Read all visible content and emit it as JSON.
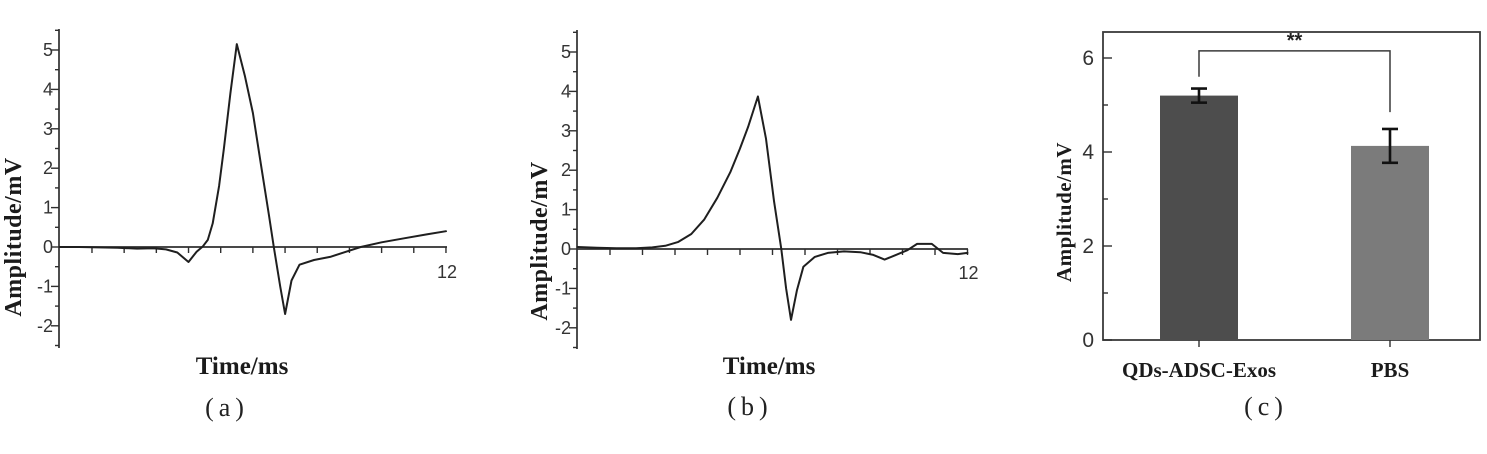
{
  "figure": {
    "background": "#ffffff",
    "line_color": "#1f1f1f",
    "axis_color": "#2f2f2f"
  },
  "chart_data": [
    {
      "panel": "a",
      "type": "line",
      "xlabel": "Time/ms",
      "ylabel": "Amplitude/mV",
      "caption": "(a)",
      "xlim": [
        0,
        12
      ],
      "ylim": [
        -2.55,
        5.55
      ],
      "x_ticks": [
        1,
        2,
        3,
        4,
        5,
        6,
        7,
        8,
        9,
        10,
        11,
        12
      ],
      "x_axis_end_label": "12",
      "y_ticks": [
        -2,
        -1,
        0,
        1,
        2,
        3,
        4,
        5
      ],
      "grid": "off",
      "points": [
        [
          0,
          0
        ],
        [
          0.6,
          0
        ],
        [
          1.2,
          -0.01
        ],
        [
          1.8,
          -0.02
        ],
        [
          2.4,
          -0.04
        ],
        [
          2.9,
          -0.03
        ],
        [
          3.3,
          -0.06
        ],
        [
          3.65,
          -0.14
        ],
        [
          4.0,
          -0.38
        ],
        [
          4.25,
          -0.12
        ],
        [
          4.45,
          0.02
        ],
        [
          4.6,
          0.18
        ],
        [
          4.75,
          0.6
        ],
        [
          4.95,
          1.55
        ],
        [
          5.1,
          2.5
        ],
        [
          5.3,
          3.9
        ],
        [
          5.5,
          5.15
        ],
        [
          5.75,
          4.35
        ],
        [
          6.0,
          3.4
        ],
        [
          6.25,
          2.1
        ],
        [
          6.5,
          0.8
        ],
        [
          6.65,
          0
        ],
        [
          6.85,
          -1.0
        ],
        [
          7.0,
          -1.7
        ],
        [
          7.2,
          -0.85
        ],
        [
          7.45,
          -0.45
        ],
        [
          7.9,
          -0.33
        ],
        [
          8.4,
          -0.25
        ],
        [
          8.9,
          -0.12
        ],
        [
          9.35,
          0
        ],
        [
          10.0,
          0.12
        ],
        [
          10.7,
          0.22
        ],
        [
          11.4,
          0.32
        ],
        [
          12.0,
          0.4
        ]
      ]
    },
    {
      "panel": "b",
      "type": "line",
      "xlabel": "Time/ms",
      "ylabel": "Amplitude/mV",
      "caption": "(b)",
      "xlim": [
        0,
        12
      ],
      "ylim": [
        -2.55,
        5.55
      ],
      "x_ticks": [
        1,
        2,
        3,
        4,
        5,
        6,
        7,
        8,
        9,
        10,
        11,
        12
      ],
      "x_axis_end_label": "12",
      "y_ticks": [
        -2,
        -1,
        0,
        1,
        2,
        3,
        4,
        5
      ],
      "grid": "off",
      "points": [
        [
          0,
          0.05
        ],
        [
          0.6,
          0.03
        ],
        [
          1.2,
          0.02
        ],
        [
          1.8,
          0.02
        ],
        [
          2.3,
          0.04
        ],
        [
          2.7,
          0.08
        ],
        [
          3.1,
          0.18
        ],
        [
          3.5,
          0.38
        ],
        [
          3.9,
          0.75
        ],
        [
          4.3,
          1.3
        ],
        [
          4.7,
          1.95
        ],
        [
          5.0,
          2.55
        ],
        [
          5.25,
          3.1
        ],
        [
          5.55,
          3.87
        ],
        [
          5.8,
          2.8
        ],
        [
          6.05,
          1.2
        ],
        [
          6.27,
          0
        ],
        [
          6.42,
          -1.0
        ],
        [
          6.57,
          -1.8
        ],
        [
          6.75,
          -1.05
        ],
        [
          6.95,
          -0.45
        ],
        [
          7.3,
          -0.2
        ],
        [
          7.7,
          -0.1
        ],
        [
          8.2,
          -0.06
        ],
        [
          8.7,
          -0.08
        ],
        [
          9.1,
          -0.15
        ],
        [
          9.45,
          -0.27
        ],
        [
          9.8,
          -0.15
        ],
        [
          10.15,
          -0.03
        ],
        [
          10.45,
          0.13
        ],
        [
          10.9,
          0.13
        ],
        [
          11.25,
          -0.1
        ],
        [
          11.7,
          -0.13
        ],
        [
          12,
          -0.1
        ]
      ]
    },
    {
      "panel": "c",
      "type": "bar",
      "ylabel": "Amplitude/mV",
      "caption": "(c)",
      "categories": [
        "QDs-ADSC-Exos",
        "PBS"
      ],
      "values": [
        5.2,
        4.13
      ],
      "errors": [
        0.15,
        0.36
      ],
      "bar_colors": [
        "#4d4d4d",
        "#7b7b7b"
      ],
      "y_ticks": [
        0,
        2,
        4,
        6
      ],
      "y_minor_ticks": [
        1,
        3,
        5
      ],
      "ylim": [
        0,
        6.55
      ],
      "grid": "off",
      "significance": {
        "label": "**",
        "bar_level": 6.15,
        "left_drop": 5.6,
        "right_drop": 4.85
      }
    }
  ]
}
